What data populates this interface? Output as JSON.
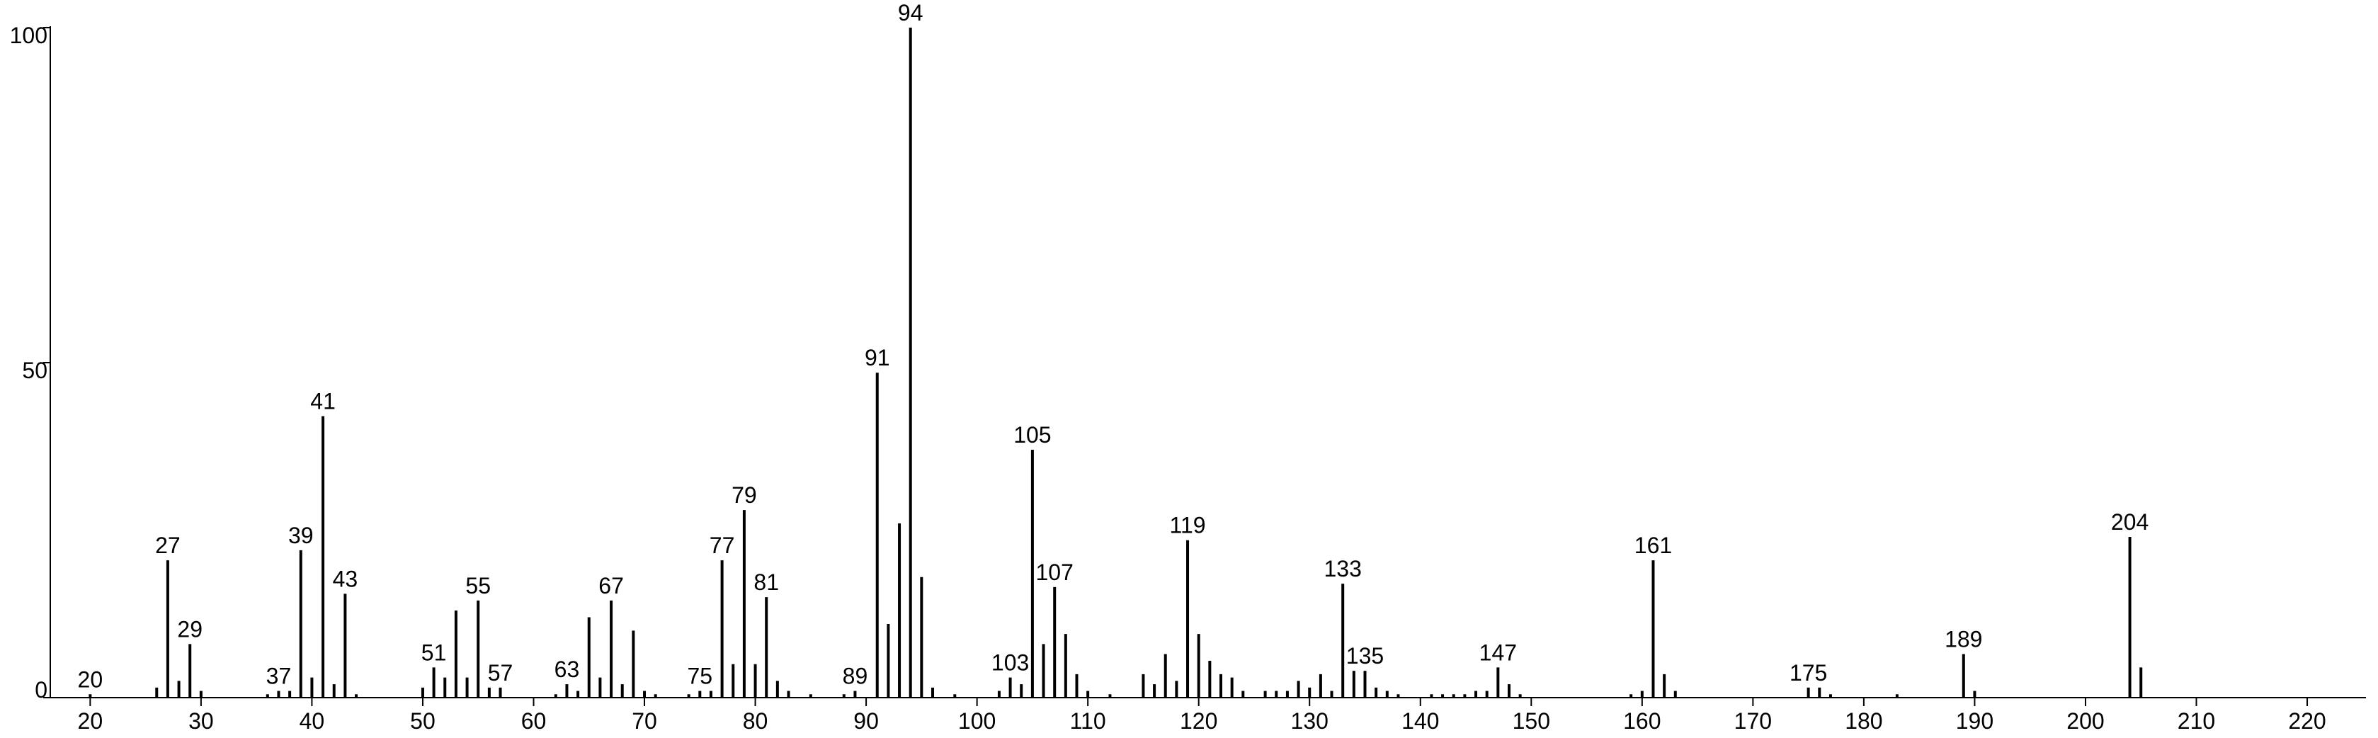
{
  "chart_data": {
    "type": "stem",
    "color": "#000000",
    "x": [
      20,
      26,
      27,
      28,
      29,
      30,
      36,
      37,
      38,
      39,
      40,
      41,
      42,
      43,
      44,
      50,
      51,
      52,
      53,
      54,
      55,
      56,
      57,
      62,
      63,
      64,
      65,
      66,
      67,
      68,
      69,
      70,
      71,
      74,
      75,
      76,
      77,
      78,
      79,
      80,
      81,
      82,
      83,
      85,
      88,
      89,
      91,
      92,
      93,
      94,
      95,
      96,
      98,
      102,
      103,
      104,
      105,
      106,
      107,
      108,
      109,
      110,
      112,
      115,
      116,
      117,
      118,
      119,
      120,
      121,
      122,
      123,
      124,
      126,
      127,
      128,
      129,
      130,
      131,
      132,
      133,
      134,
      135,
      136,
      137,
      138,
      141,
      142,
      143,
      144,
      145,
      146,
      147,
      148,
      149,
      159,
      160,
      161,
      162,
      163,
      175,
      176,
      177,
      183,
      189,
      190,
      204,
      205
    ],
    "values": [
      0.5,
      1.5,
      20.5,
      2.5,
      8,
      1,
      0.5,
      1,
      1,
      22,
      3,
      42,
      2,
      15.5,
      0.5,
      1.5,
      4.5,
      3,
      13,
      3,
      14.5,
      1.5,
      1.5,
      0.5,
      2,
      1,
      12,
      3,
      14.5,
      2,
      10,
      1,
      0.5,
      0.5,
      1,
      1,
      20.5,
      5,
      28,
      5,
      15,
      2.5,
      1,
      0.5,
      0.5,
      1,
      48.5,
      11,
      26,
      100,
      18,
      1.5,
      0.5,
      1,
      3,
      2,
      37,
      8,
      16.5,
      9.5,
      3.5,
      1,
      0.5,
      3.5,
      2,
      6.5,
      2.5,
      23.5,
      9.5,
      5.5,
      3.5,
      3,
      1,
      1,
      1,
      1,
      2.5,
      1.5,
      3.5,
      1,
      17,
      4,
      4,
      1.5,
      1,
      0.5,
      0.5,
      0.5,
      0.5,
      0.5,
      1,
      1,
      4.5,
      2,
      0.5,
      0.5,
      1,
      20.5,
      3.5,
      1,
      1.5,
      1.5,
      0.5,
      0.5,
      6.5,
      1,
      24,
      4.5
    ],
    "annotations": [
      20,
      27,
      29,
      37,
      39,
      41,
      43,
      51,
      55,
      57,
      63,
      67,
      75,
      77,
      79,
      81,
      89,
      91,
      94,
      103,
      105,
      107,
      119,
      133,
      135,
      147,
      161,
      175,
      189,
      204
    ],
    "xlim": [
      16.4,
      225.3
    ],
    "xticks": [
      20,
      30,
      40,
      50,
      60,
      70,
      80,
      90,
      100,
      110,
      120,
      130,
      140,
      150,
      160,
      170,
      180,
      190,
      200,
      210,
      220
    ],
    "ylim": [
      0,
      100
    ],
    "yticks": [
      0,
      50,
      100
    ]
  }
}
